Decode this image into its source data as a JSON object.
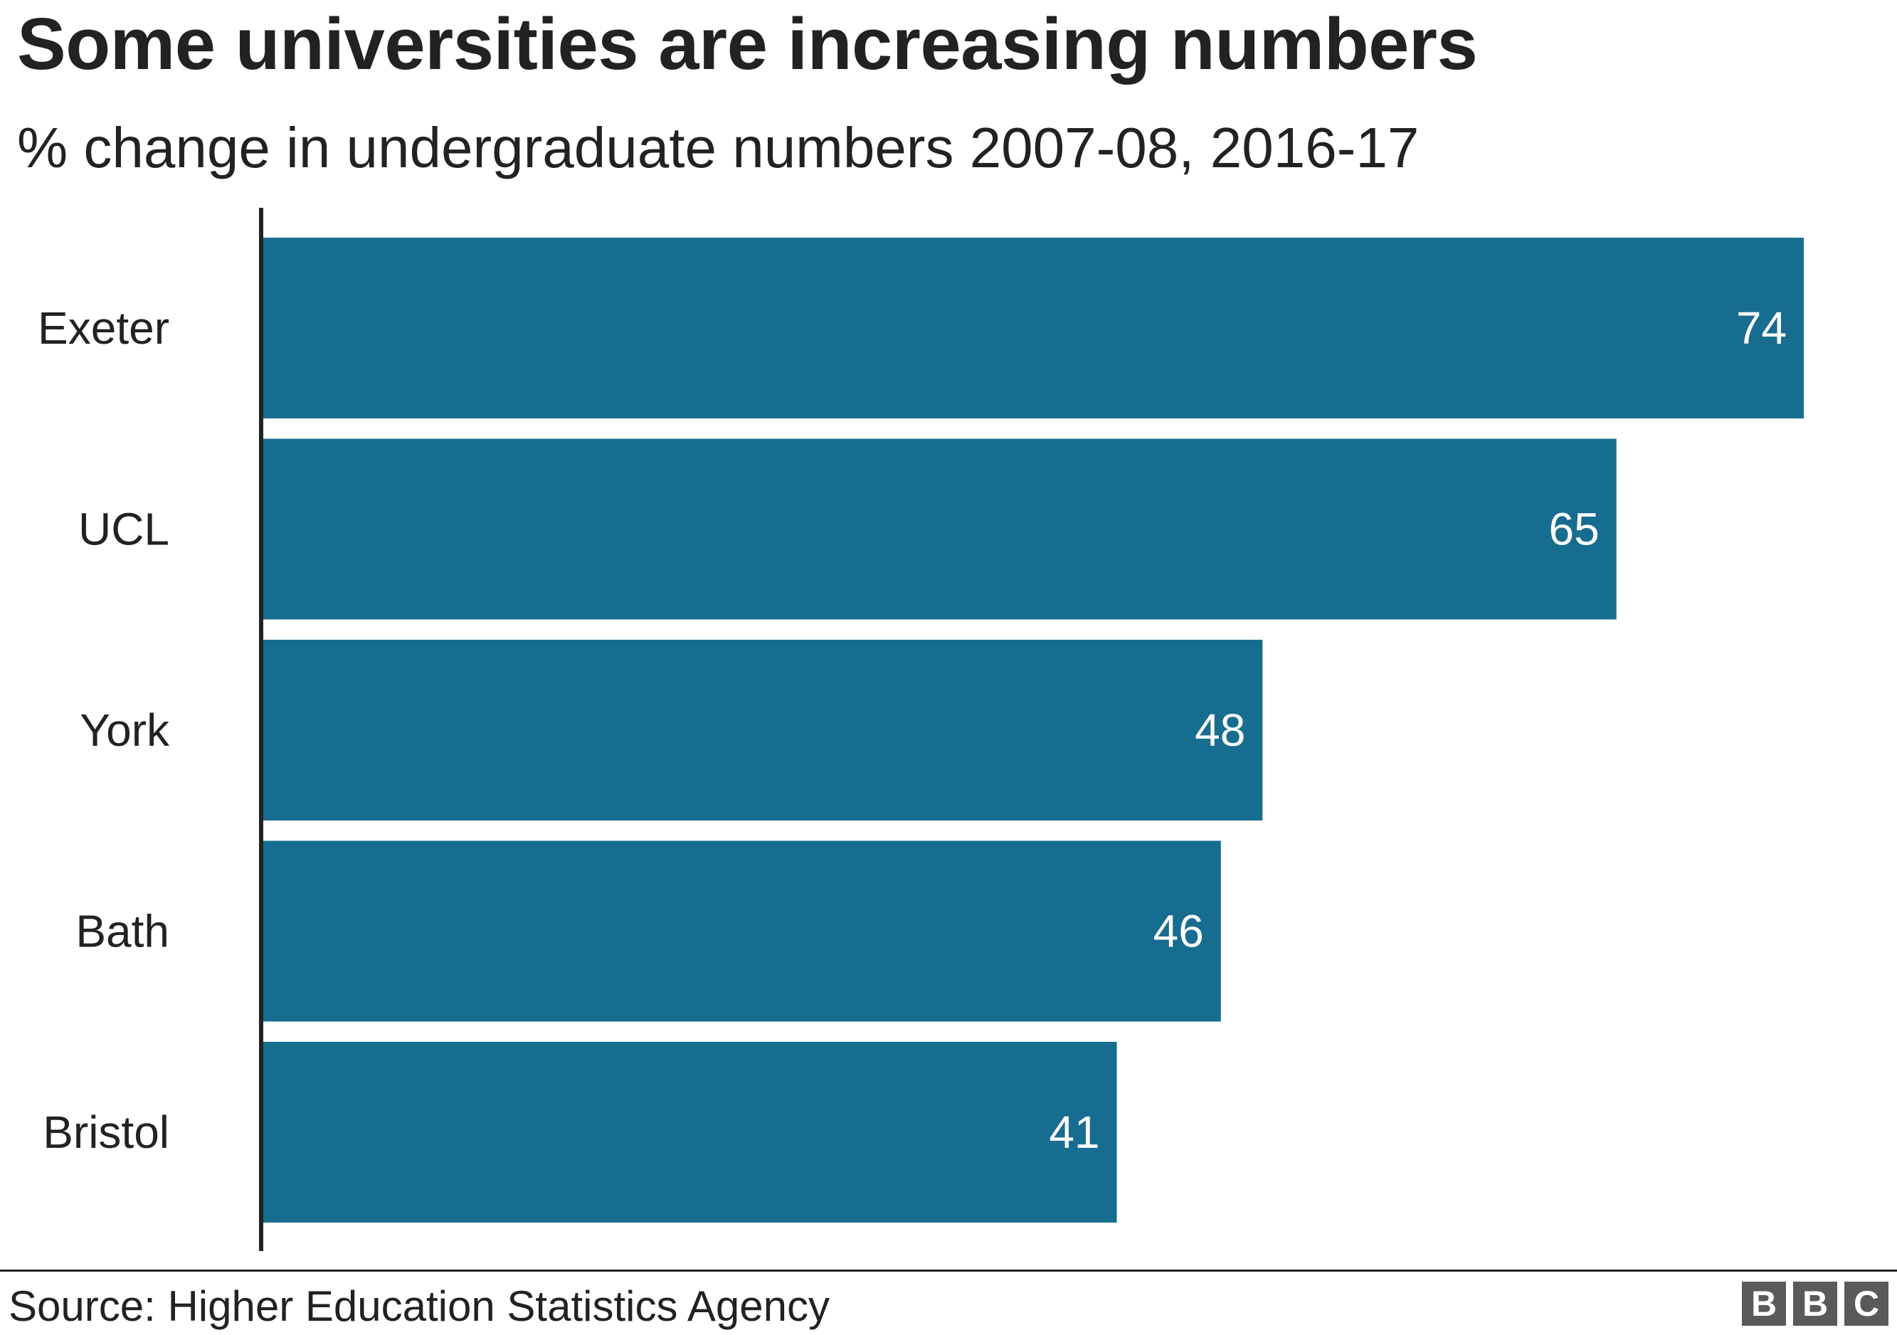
{
  "chart_data": {
    "type": "bar",
    "orientation": "horizontal",
    "title": "Some universities are increasing numbers",
    "subtitle": "% change in undergraduate numbers 2007-08, 2016-17",
    "categories": [
      "Exeter",
      "UCL",
      "York",
      "Bath",
      "Bristol"
    ],
    "values": [
      74,
      65,
      48,
      46,
      41
    ],
    "value_labels": [
      "74",
      "65",
      "48",
      "46",
      "41"
    ],
    "xlim": [
      0,
      74
    ],
    "grid": false,
    "legend": "none",
    "bar_color": "#176d90",
    "value_label_color": "#ffffff"
  },
  "footer": {
    "source": "Source: Higher Education Statistics Agency",
    "brand_letters": [
      "B",
      "B",
      "C"
    ]
  }
}
